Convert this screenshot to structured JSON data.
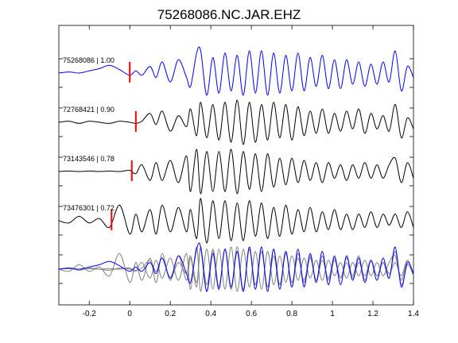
{
  "chart_data": {
    "type": "line",
    "title": "75268086.NC.JAR.EHZ",
    "xlabel": "",
    "ylabel": "",
    "xlim": [
      -0.35,
      1.4
    ],
    "xticks": [
      -0.2,
      0,
      0.2,
      0.4,
      0.6,
      0.8,
      1,
      1.2,
      1.4
    ],
    "xtick_labels": [
      "-0.2",
      "0",
      "0.2",
      "0.4",
      "0.6",
      "0.8",
      "1",
      "1.2",
      "1.4"
    ],
    "grid": false,
    "colors": {
      "reference": "#0000ff",
      "trace": "#000000",
      "overlay": "#808080",
      "pick": "#ff0000"
    },
    "series": [
      {
        "name": "75268086 | 1.00",
        "event_id": "75268086",
        "correlation": 1.0,
        "pick_time": 0.0,
        "color": "#0000ff",
        "x": [
          -0.35,
          -0.3,
          -0.25,
          -0.2,
          -0.15,
          -0.1,
          -0.05,
          0,
          0.03,
          0.06,
          0.1,
          0.13,
          0.16,
          0.2,
          0.24,
          0.28,
          0.3,
          0.33,
          0.35,
          0.38,
          0.41,
          0.44,
          0.47,
          0.5,
          0.53,
          0.56,
          0.59,
          0.62,
          0.65,
          0.68,
          0.71,
          0.74,
          0.77,
          0.8,
          0.83,
          0.86,
          0.89,
          0.92,
          0.95,
          0.98,
          1.01,
          1.04,
          1.07,
          1.1,
          1.13,
          1.16,
          1.19,
          1.22,
          1.25,
          1.28,
          1.31,
          1.34,
          1.37,
          1.4
        ],
        "y": [
          0.0,
          0.05,
          0.0,
          0.1,
          0.2,
          0.35,
          0.15,
          -0.1,
          0.1,
          -0.1,
          0.3,
          -0.2,
          0.5,
          -0.4,
          0.6,
          -0.2,
          -0.6,
          0.9,
          1.0,
          -1.0,
          0.7,
          -0.9,
          0.9,
          -0.8,
          0.8,
          -1.0,
          1.0,
          -0.9,
          1.0,
          -1.0,
          0.9,
          -0.9,
          0.8,
          -0.8,
          0.9,
          -0.8,
          0.7,
          -0.6,
          0.8,
          -0.7,
          0.6,
          -0.7,
          0.6,
          -0.5,
          0.5,
          -0.6,
          0.4,
          -0.5,
          0.5,
          -0.4,
          1.0,
          -0.8,
          0.3,
          -0.2
        ]
      },
      {
        "name": "72768421 | 0.90",
        "event_id": "72768421",
        "correlation": 0.9,
        "pick_time": 0.03,
        "color": "#000000",
        "x": [
          -0.35,
          -0.3,
          -0.25,
          -0.2,
          -0.15,
          -0.1,
          -0.05,
          0,
          0.03,
          0.06,
          0.1,
          0.13,
          0.16,
          0.2,
          0.24,
          0.28,
          0.3,
          0.33,
          0.35,
          0.38,
          0.41,
          0.44,
          0.47,
          0.5,
          0.53,
          0.56,
          0.59,
          0.62,
          0.65,
          0.68,
          0.71,
          0.74,
          0.77,
          0.8,
          0.83,
          0.86,
          0.89,
          0.92,
          0.95,
          0.98,
          1.01,
          1.04,
          1.07,
          1.1,
          1.13,
          1.16,
          1.19,
          1.22,
          1.25,
          1.28,
          1.31,
          1.34,
          1.37,
          1.4
        ],
        "y": [
          0.0,
          0.05,
          -0.05,
          0.05,
          0.0,
          -0.05,
          0.05,
          0.0,
          -0.05,
          0.05,
          0.4,
          -0.1,
          0.5,
          -0.4,
          0.3,
          -0.2,
          0.6,
          -0.6,
          0.9,
          -0.7,
          0.8,
          -0.8,
          0.9,
          -0.9,
          1.0,
          -1.0,
          0.9,
          -0.9,
          0.8,
          -0.8,
          0.9,
          -0.7,
          0.8,
          -0.8,
          0.7,
          -0.6,
          0.5,
          -0.5,
          0.6,
          -0.5,
          0.4,
          -0.4,
          0.5,
          -0.3,
          0.6,
          -0.5,
          0.4,
          -0.3,
          0.3,
          -0.4,
          0.8,
          -0.7,
          0.2,
          -0.3
        ]
      },
      {
        "name": "73143546 | 0.78",
        "event_id": "73143546",
        "correlation": 0.78,
        "pick_time": 0.01,
        "color": "#000000",
        "x": [
          -0.35,
          -0.3,
          -0.25,
          -0.2,
          -0.15,
          -0.1,
          -0.05,
          0,
          0.03,
          0.06,
          0.1,
          0.13,
          0.16,
          0.2,
          0.24,
          0.28,
          0.3,
          0.33,
          0.35,
          0.38,
          0.41,
          0.44,
          0.47,
          0.5,
          0.53,
          0.56,
          0.59,
          0.62,
          0.65,
          0.68,
          0.71,
          0.74,
          0.77,
          0.8,
          0.83,
          0.86,
          0.89,
          0.92,
          0.95,
          0.98,
          1.01,
          1.04,
          1.07,
          1.1,
          1.13,
          1.16,
          1.19,
          1.22,
          1.25,
          1.28,
          1.31,
          1.34,
          1.37,
          1.4
        ],
        "y": [
          0.0,
          0.02,
          0.0,
          0.02,
          0.0,
          0.02,
          0.0,
          0.05,
          -0.1,
          0.3,
          -0.4,
          0.4,
          -0.4,
          0.5,
          -0.5,
          0.7,
          -0.9,
          1.0,
          -1.0,
          0.9,
          -0.9,
          0.9,
          -0.9,
          1.0,
          -1.0,
          0.9,
          -0.8,
          0.8,
          -0.9,
          0.8,
          -0.7,
          0.6,
          -0.6,
          0.6,
          -0.5,
          0.5,
          -0.4,
          0.4,
          -0.5,
          0.4,
          -0.3,
          0.3,
          -0.4,
          0.3,
          -0.3,
          0.4,
          -0.3,
          0.3,
          -0.3,
          0.3,
          0.6,
          -0.5,
          0.4,
          -0.3
        ]
      },
      {
        "name": "73476301 | 0.72",
        "event_id": "73476301",
        "correlation": 0.72,
        "pick_time": -0.09,
        "color": "#000000",
        "x": [
          -0.35,
          -0.3,
          -0.25,
          -0.2,
          -0.15,
          -0.1,
          -0.05,
          0,
          0.03,
          0.06,
          0.1,
          0.13,
          0.16,
          0.2,
          0.24,
          0.28,
          0.3,
          0.33,
          0.35,
          0.38,
          0.41,
          0.44,
          0.47,
          0.5,
          0.53,
          0.56,
          0.59,
          0.62,
          0.65,
          0.68,
          0.71,
          0.74,
          0.77,
          0.8,
          0.83,
          0.86,
          0.89,
          0.92,
          0.95,
          0.98,
          1.01,
          1.04,
          1.07,
          1.1,
          1.13,
          1.16,
          1.19,
          1.22,
          1.25,
          1.28,
          1.31,
          1.34,
          1.37,
          1.4
        ],
        "y": [
          0.0,
          -0.1,
          0.2,
          -0.1,
          0.1,
          -0.3,
          0.7,
          -0.6,
          0.3,
          -0.5,
          0.5,
          -0.6,
          0.7,
          -0.5,
          0.6,
          -0.5,
          0.5,
          -0.8,
          1.0,
          -1.0,
          0.9,
          -0.8,
          0.9,
          -0.9,
          0.8,
          -0.9,
          0.9,
          -0.7,
          0.8,
          -0.8,
          0.6,
          -0.7,
          0.7,
          -0.6,
          0.5,
          -0.5,
          0.6,
          -0.5,
          0.4,
          -0.4,
          0.5,
          -0.4,
          0.3,
          -0.4,
          0.3,
          -0.3,
          0.4,
          -0.3,
          0.3,
          -0.2,
          0.3,
          -0.3,
          0.4,
          -0.3
        ]
      }
    ],
    "stack_overlay": true
  }
}
